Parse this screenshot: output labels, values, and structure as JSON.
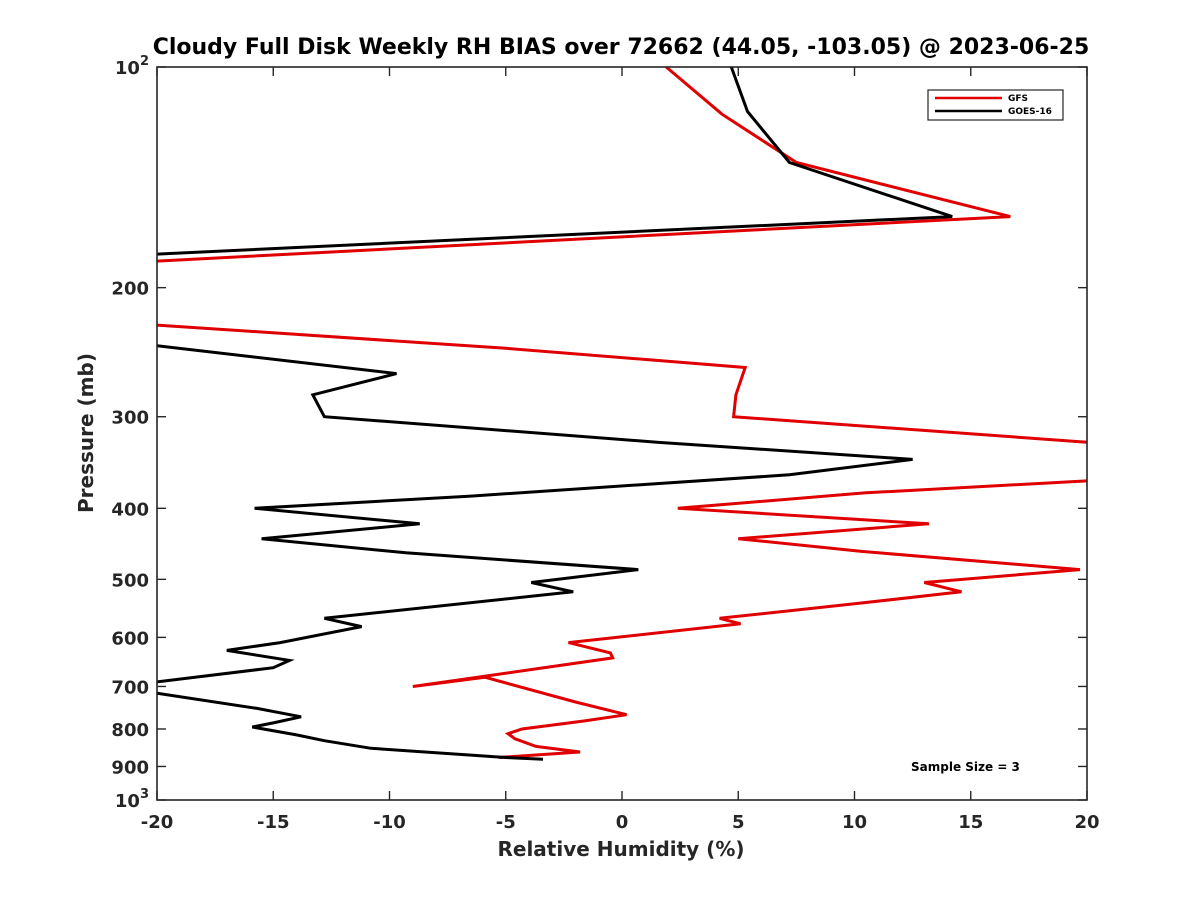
{
  "chart_data": {
    "type": "line",
    "title": "Cloudy Full Disk Weekly RH BIAS over 72662 (44.05, -103.05) @ 2023-06-25",
    "xlabel": "Relative Humidity (%)",
    "ylabel": "Pressure (mb)",
    "xlim": [
      -20,
      20
    ],
    "ylim": [
      100,
      1000
    ],
    "y_scale": "log",
    "y_reversed": true,
    "grid": false,
    "legend_position": "top-right",
    "x_ticks": [
      "-20",
      "-15",
      "-10",
      "-5",
      "0",
      "5",
      "10",
      "15",
      "20"
    ],
    "y_ticks": [
      {
        "value": 100,
        "base": "10",
        "exp": "2"
      },
      {
        "value": 200,
        "label": "200"
      },
      {
        "value": 300,
        "label": "300"
      },
      {
        "value": 400,
        "label": "400"
      },
      {
        "value": 500,
        "label": "500"
      },
      {
        "value": 600,
        "label": "600"
      },
      {
        "value": 700,
        "label": "700"
      },
      {
        "value": 800,
        "label": "800"
      },
      {
        "value": 900,
        "label": "900"
      },
      {
        "value": 1000,
        "base": "10",
        "exp": "3"
      }
    ],
    "annotation": "Sample Size = 3",
    "series": [
      {
        "name": "GFS",
        "color": "#e00000",
        "segments": [
          [
            [
              1.9,
              100
            ],
            [
              4.3,
              116
            ],
            [
              7.5,
              135
            ],
            [
              16.7,
              160
            ],
            [
              -20,
              184
            ]
          ],
          [
            [
              -20,
              225
            ],
            [
              -5,
              242
            ],
            [
              5.3,
              257
            ],
            [
              4.9,
              280
            ],
            [
              4.8,
              300
            ],
            [
              20,
              325
            ]
          ],
          [
            [
              20,
              367
            ],
            [
              10.5,
              381
            ],
            [
              2.4,
              400
            ],
            [
              13.2,
              420
            ],
            [
              5,
              440
            ],
            [
              10.3,
              458
            ],
            [
              19.7,
              485
            ],
            [
              13,
              505
            ],
            [
              14.6,
              520
            ],
            [
              10,
              540
            ],
            [
              4.2,
              565
            ],
            [
              5.1,
              575
            ],
            [
              -2.3,
              610
            ],
            [
              -0.5,
              630
            ],
            [
              -0.4,
              640
            ],
            [
              -9.0,
              700
            ],
            [
              -5.9,
              680
            ],
            [
              -2.0,
              735
            ],
            [
              0.2,
              765
            ],
            [
              -1.6,
              780
            ],
            [
              -4.3,
              800
            ],
            [
              -4.9,
              812
            ],
            [
              -4.6,
              825
            ],
            [
              -3.7,
              845
            ],
            [
              -1.8,
              860
            ],
            [
              -5.3,
              875
            ]
          ]
        ]
      },
      {
        "name": "GOES-16",
        "color": "#000000",
        "segments": [
          [
            [
              4.7,
              100
            ],
            [
              5.4,
              115
            ],
            [
              7.2,
              135
            ],
            [
              14.2,
              160
            ],
            [
              -20,
              180
            ]
          ],
          [
            [
              -20,
              240
            ],
            [
              -9.7,
              262
            ],
            [
              -13.3,
              280
            ],
            [
              -12.8,
              300
            ],
            [
              1.5,
              325
            ],
            [
              12.5,
              343
            ],
            [
              7.2,
              360
            ],
            [
              -6.5,
              385
            ],
            [
              -15.8,
              400
            ],
            [
              -8.7,
              420
            ],
            [
              -15.5,
              440
            ],
            [
              -9.3,
              460
            ],
            [
              0.7,
              485
            ],
            [
              -3.9,
              505
            ],
            [
              -2.1,
              520
            ],
            [
              -12.8,
              565
            ],
            [
              -11.2,
              580
            ],
            [
              -14.7,
              610
            ],
            [
              -17.0,
              625
            ],
            [
              -14.3,
              645
            ],
            [
              -15.0,
              660
            ],
            [
              -20,
              690
            ]
          ],
          [
            [
              -20,
              715
            ],
            [
              -15.7,
              750
            ],
            [
              -13.8,
              770
            ],
            [
              -15.0,
              785
            ],
            [
              -15.9,
              795
            ],
            [
              -14.0,
              815
            ],
            [
              -12.8,
              830
            ],
            [
              -10.8,
              850
            ],
            [
              -5.0,
              875
            ],
            [
              -3.4,
              880
            ]
          ]
        ]
      }
    ]
  }
}
